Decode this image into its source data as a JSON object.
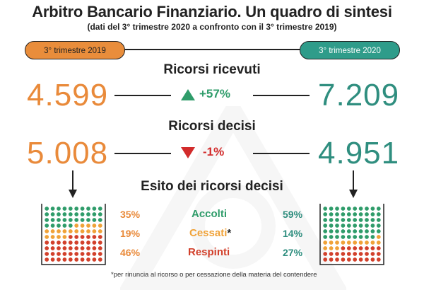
{
  "title": "Arbitro Bancario Finanziario. Un quadro di sintesi",
  "subtitle": "(dati del 3° trimestre 2020 a confronto con il 3° trimestre  2019)",
  "periods": {
    "left": "3° trimestre 2019",
    "right": "3° trimestre 2020"
  },
  "sections": {
    "received": {
      "title": "Ricorsi ricevuti",
      "left": "4.599",
      "right": "7.209",
      "delta": "+57%",
      "direction": "up"
    },
    "decided": {
      "title": "Ricorsi decisi",
      "left": "5.008",
      "right": "4.951",
      "delta": "-1%",
      "direction": "down"
    },
    "outcome": {
      "title": "Esito dei ricorsi decisi"
    }
  },
  "outcomes": [
    {
      "label": "Accolti",
      "left": "35%",
      "right": "59%",
      "color": "#2f9c6a"
    },
    {
      "label": "Cessati",
      "marker": "*",
      "left": "19%",
      "right": "14%",
      "color": "#f0a238"
    },
    {
      "label": "Respinti",
      "left": "46%",
      "right": "27%",
      "color": "#d2402b"
    }
  ],
  "footnote": "*per rinuncia al ricorso o per cessazione della materia del contendere",
  "chart_data": {
    "type": "table",
    "columns": [
      "3° trimestre 2019",
      "3° trimestre 2020"
    ],
    "rows": [
      {
        "name": "Ricorsi ricevuti",
        "values": [
          4599,
          7209
        ],
        "change": "+57%"
      },
      {
        "name": "Ricorsi decisi",
        "values": [
          5008,
          4951
        ],
        "change": "-1%"
      }
    ],
    "outcome_shares": {
      "categories": [
        "Accolti",
        "Cessati",
        "Respinti"
      ],
      "series": [
        {
          "name": "3° trimestre 2019",
          "values": [
            35,
            19,
            46
          ]
        },
        {
          "name": "3° trimestre 2020",
          "values": [
            59,
            14,
            27
          ]
        }
      ]
    },
    "colors": {
      "orange": "#e98a3a",
      "teal": "#2f8e7f",
      "accolti": "#2f9c6a",
      "cessati": "#f0a238",
      "respinti": "#d2402b"
    }
  }
}
